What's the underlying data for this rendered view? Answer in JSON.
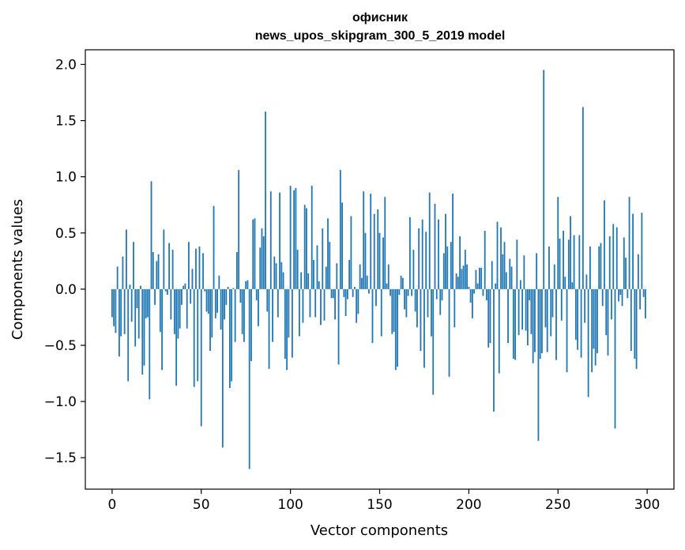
{
  "chart_data": {
    "type": "bar",
    "title": "офисник",
    "subtitle": "news_upos_skipgram_300_5_2019 model",
    "xlabel": "Vector components",
    "ylabel": "Components values",
    "xlim": [
      -15,
      315
    ],
    "ylim": [
      -1.78,
      2.13
    ],
    "xticks": [
      0,
      50,
      100,
      150,
      200,
      250,
      300
    ],
    "xtick_labels": [
      "0",
      "50",
      "100",
      "150",
      "200",
      "250",
      "300"
    ],
    "yticks": [
      -1.5,
      -1.0,
      -0.5,
      0.0,
      0.5,
      1.0,
      1.5,
      2.0
    ],
    "ytick_labels": [
      "−1.5",
      "−1.0",
      "−0.5",
      "0.0",
      "0.5",
      "1.0",
      "1.5",
      "2.0"
    ],
    "grid": false,
    "bar_color": "#1f77b4",
    "x_start": 0,
    "values": [
      -0.25,
      -0.33,
      -0.39,
      0.2,
      -0.6,
      -0.42,
      0.29,
      -0.4,
      0.53,
      -0.82,
      0.04,
      -0.29,
      0.42,
      -0.51,
      -0.17,
      -0.44,
      0.03,
      -0.76,
      -0.68,
      -0.26,
      -0.25,
      -0.98,
      0.96,
      0.33,
      -0.14,
      0.25,
      0.31,
      -0.38,
      -0.72,
      0.53,
      -0.02,
      -0.05,
      0.41,
      -0.27,
      0.35,
      -0.4,
      -0.86,
      -0.44,
      -0.35,
      -0.14,
      0.03,
      0.05,
      -0.35,
      0.42,
      -0.13,
      0.18,
      -0.87,
      0.36,
      -0.82,
      0.38,
      -1.22,
      0.32,
      -0.02,
      -0.2,
      -0.22,
      -0.55,
      -0.43,
      0.74,
      -0.26,
      -0.21,
      0.12,
      -0.36,
      -1.41,
      -0.27,
      -0.14,
      0.02,
      -0.88,
      -0.82,
      0.01,
      -0.47,
      0.33,
      1.06,
      -0.12,
      -0.4,
      -0.47,
      0.07,
      0.08,
      -1.6,
      -0.64,
      0.62,
      0.63,
      -0.1,
      -0.33,
      0.37,
      0.54,
      0.47,
      1.58,
      -0.2,
      -0.71,
      0.87,
      -0.47,
      0.29,
      0.23,
      -0.25,
      0.86,
      0.24,
      0.15,
      -0.62,
      -0.72,
      -0.43,
      0.92,
      -0.61,
      0.88,
      0.9,
      0.35,
      -0.42,
      0.15,
      -0.3,
      0.75,
      0.72,
      0.14,
      -0.25,
      0.92,
      0.26,
      -0.25,
      0.39,
      0.07,
      -0.32,
      0.54,
      -0.28,
      0.2,
      0.63,
      0.42,
      -0.08,
      -0.08,
      -0.27,
      0.23,
      -0.67,
      1.06,
      0.77,
      -0.07,
      -0.24,
      -0.09,
      0.26,
      0.65,
      -0.07,
      0.02,
      -0.3,
      -0.22,
      0.22,
      0.1,
      0.87,
      0.5,
      0.12,
      -0.04,
      0.85,
      -0.48,
      0.67,
      -0.15,
      0.71,
      0.5,
      -0.42,
      0.46,
      0.82,
      0.05,
      0.22,
      -0.06,
      -0.4,
      -0.38,
      -0.72,
      -0.69,
      -0.05,
      0.12,
      0.1,
      -0.18,
      -0.25,
      -0.06,
      0.64,
      -0.06,
      0.35,
      -0.2,
      -0.34,
      0.54,
      -0.55,
      0.62,
      -0.7,
      0.51,
      -0.25,
      0.86,
      -0.42,
      -0.94,
      0.76,
      -0.09,
      0.62,
      -0.23,
      -0.1,
      0.32,
      0.67,
      0.38,
      -0.78,
      0.42,
      0.85,
      -0.34,
      0.14,
      0.11,
      0.47,
      0.18,
      0.21,
      0.35,
      0.22,
      0.02,
      -0.12,
      -0.26,
      -0.04,
      0.17,
      0.05,
      0.19,
      0.19,
      -0.06,
      0.52,
      -0.1,
      -0.52,
      -0.48,
      0.25,
      -1.09,
      0.05,
      0.6,
      -0.75,
      0.55,
      0.31,
      0.42,
      0.15,
      -0.48,
      0.27,
      0.2,
      -0.62,
      -0.63,
      0.44,
      -0.41,
      0.08,
      -0.36,
      0.3,
      -0.37,
      -0.5,
      -0.1,
      -0.4,
      -0.66,
      -0.56,
      0.32,
      -1.35,
      -0.62,
      -0.57,
      1.95,
      -0.34,
      -0.56,
      0.38,
      -0.42,
      -0.25,
      0.22,
      -0.63,
      0.82,
      0.45,
      -0.28,
      0.52,
      0.11,
      -0.74,
      0.44,
      0.65,
      0.06,
      0.48,
      -0.45,
      -0.54,
      0.48,
      -0.61,
      1.62,
      -0.3,
      0.13,
      -0.96,
      0.38,
      -0.74,
      -0.53,
      -0.68,
      -0.57,
      0.38,
      0.41,
      -0.15,
      0.79,
      -0.41,
      -0.59,
      0.47,
      -0.27,
      0.58,
      -1.24,
      0.55,
      -0.11,
      -0.05,
      -0.15,
      0.46,
      0.28,
      -0.08,
      0.82,
      -0.55,
      0.67,
      -0.62,
      -0.71,
      0.31,
      -0.18,
      0.68,
      -0.07,
      -0.26
    ]
  }
}
